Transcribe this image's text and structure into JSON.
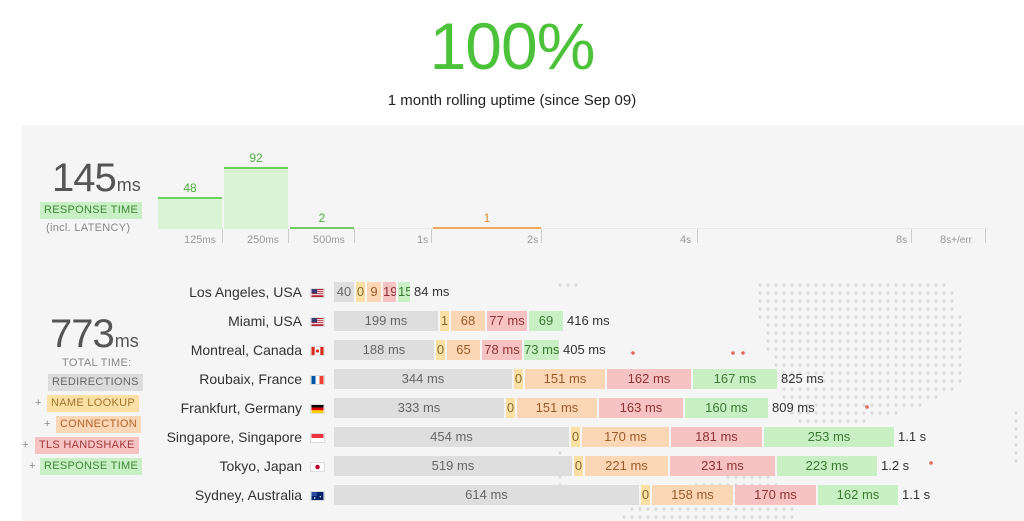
{
  "uptime": {
    "percent": "100%",
    "subtitle": "1 month rolling uptime (since Sep 09)"
  },
  "response": {
    "value": "145",
    "unit": "ms",
    "label": "RESPONSE TIME",
    "sublabel": "(incl. LATENCY)"
  },
  "histogram": {
    "bars": [
      {
        "value": "48",
        "bucket": "125ms"
      },
      {
        "value": "92",
        "bucket": "250ms"
      },
      {
        "value": "2",
        "bucket": "500ms"
      },
      {
        "value": "1",
        "bucket": "2s"
      }
    ],
    "ticks": [
      {
        "num": "125",
        "unit": "ms"
      },
      {
        "num": "250",
        "unit": "ms"
      },
      {
        "num": "500",
        "unit": "ms"
      },
      {
        "num": "1",
        "unit": "s"
      },
      {
        "num": "2",
        "unit": "s"
      },
      {
        "num": "4",
        "unit": "s"
      },
      {
        "num": "8",
        "unit": "s"
      },
      {
        "num": "8",
        "unit": "s+/err"
      }
    ]
  },
  "total": {
    "value": "773",
    "unit": "ms",
    "label": "TOTAL TIME:",
    "legend": [
      {
        "prefix": "",
        "label": "REDIRECTIONS",
        "color": "#dcdcdc"
      },
      {
        "prefix": "+",
        "label": "NAME LOOKUP",
        "color": "#fbe0a6"
      },
      {
        "prefix": "+",
        "label": "CONNECTION",
        "color": "#fcd7b6"
      },
      {
        "prefix": "+",
        "label": "TLS HANDSHAKE",
        "color": "#f6c2c2"
      },
      {
        "prefix": "+",
        "label": "RESPONSE TIME",
        "color": "#c9efc4"
      }
    ]
  },
  "locations": [
    {
      "city": "Los Angeles",
      "country": "USA",
      "flag": "us-flag-icon",
      "segs": [
        "40",
        "0",
        "9",
        "19",
        "15"
      ],
      "total": "84 ms"
    },
    {
      "city": "Miami",
      "country": "USA",
      "flag": "us-flag-icon",
      "segs": [
        "199 ms",
        "1",
        "68",
        "77 ms",
        "69"
      ],
      "total": "416 ms"
    },
    {
      "city": "Montreal",
      "country": "Canada",
      "flag": "canada-flag-icon",
      "segs": [
        "188 ms",
        "0",
        "65",
        "78 ms",
        "73 ms"
      ],
      "total": "405 ms"
    },
    {
      "city": "Roubaix",
      "country": "France",
      "flag": "france-flag-icon",
      "segs": [
        "344 ms",
        "0",
        "151 ms",
        "162 ms",
        "167 ms"
      ],
      "total": "825 ms"
    },
    {
      "city": "Frankfurt",
      "country": "Germany",
      "flag": "germany-flag-icon",
      "segs": [
        "333 ms",
        "0",
        "151 ms",
        "163 ms",
        "160 ms"
      ],
      "total": "809 ms"
    },
    {
      "city": "Singapore",
      "country": "Singapore",
      "flag": "singapore-flag-icon",
      "segs": [
        "454 ms",
        "0",
        "170 ms",
        "181 ms",
        "253 ms"
      ],
      "total": "1.1 s"
    },
    {
      "city": "Tokyo",
      "country": "Japan",
      "flag": "japan-flag-icon",
      "segs": [
        "519 ms",
        "0",
        "221 ms",
        "231 ms",
        "223 ms"
      ],
      "total": "1.2 s"
    },
    {
      "city": "Sydney",
      "country": "Australia",
      "flag": "australia-flag-icon",
      "segs": [
        "614 ms",
        "0",
        "158 ms",
        "170 ms",
        "162 ms"
      ],
      "total": "1.1 s"
    }
  ]
}
